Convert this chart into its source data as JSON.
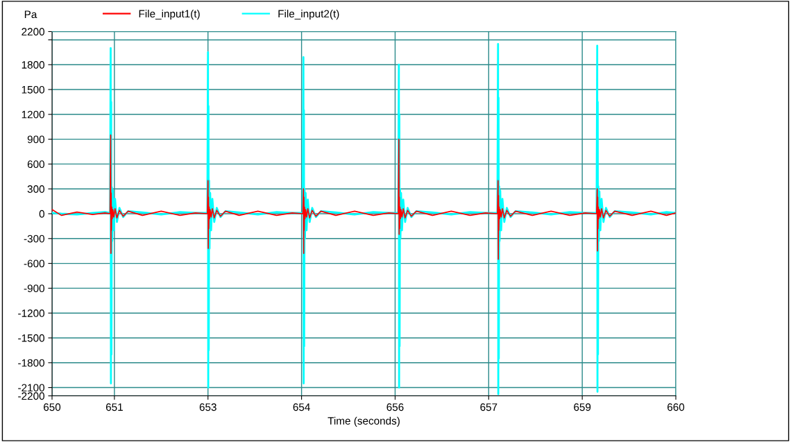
{
  "chart_data": {
    "type": "line",
    "ylabel": "Pa",
    "xlabel": "Time (seconds)",
    "legend": "top",
    "grid": true,
    "marker": "none",
    "line_style": "solid",
    "xlim": [
      650,
      660
    ],
    "xticks": [
      650,
      651,
      {
        "value": 652.5,
        "label": "653"
      },
      654,
      {
        "value": 655.5,
        "label": "656"
      },
      657,
      {
        "value": 658.5,
        "label": "659"
      },
      660
    ],
    "ylim": [
      -2200,
      2200
    ],
    "yticks": [
      -2200,
      -2100,
      -1800,
      -1500,
      -1200,
      -900,
      -600,
      -300,
      0,
      300,
      600,
      900,
      1200,
      1500,
      1800,
      {
        "value": 2100,
        "label": null
      },
      2200
    ],
    "x": [
      650.0,
      650.15,
      650.4,
      650.65,
      650.85,
      650.93,
      650.94,
      650.944,
      650.948,
      650.952,
      650.958,
      650.965,
      650.975,
      650.99,
      651.01,
      651.04,
      651.08,
      651.14,
      651.22,
      651.45,
      651.75,
      652.05,
      652.3,
      652.49,
      652.5,
      652.504,
      652.508,
      652.512,
      652.518,
      652.525,
      652.535,
      652.55,
      652.57,
      652.6,
      652.64,
      652.7,
      652.78,
      653.0,
      653.3,
      653.6,
      653.85,
      654.02,
      654.03,
      654.034,
      654.038,
      654.042,
      654.048,
      654.055,
      654.065,
      654.08,
      654.1,
      654.13,
      654.17,
      654.23,
      654.31,
      654.55,
      654.85,
      655.15,
      655.4,
      655.55,
      655.56,
      655.564,
      655.568,
      655.572,
      655.578,
      655.585,
      655.595,
      655.61,
      655.63,
      655.66,
      655.7,
      655.76,
      655.84,
      656.1,
      656.4,
      656.7,
      656.95,
      657.14,
      657.15,
      657.154,
      657.158,
      657.162,
      657.168,
      657.175,
      657.185,
      657.2,
      657.22,
      657.25,
      657.29,
      657.35,
      657.43,
      657.7,
      658.0,
      658.3,
      658.55,
      658.73,
      658.74,
      658.744,
      658.748,
      658.752,
      658.758,
      658.765,
      658.775,
      658.79,
      658.81,
      658.84,
      658.88,
      658.94,
      659.02,
      659.3,
      659.6,
      659.85,
      660.0
    ],
    "series": [
      {
        "name": "File_input1(t)",
        "color": "#ff0000",
        "values": [
          50,
          -20,
          20,
          -10,
          10,
          0,
          950,
          -480,
          250,
          -200,
          80,
          -60,
          50,
          -40,
          60,
          -50,
          40,
          -30,
          30,
          -20,
          30,
          -20,
          10,
          0,
          400,
          -420,
          200,
          -180,
          80,
          -60,
          50,
          -40,
          60,
          -50,
          40,
          -30,
          30,
          -20,
          30,
          -20,
          10,
          0,
          300,
          -480,
          200,
          -200,
          80,
          -60,
          50,
          -40,
          60,
          -50,
          40,
          -30,
          30,
          -20,
          30,
          -20,
          10,
          0,
          900,
          -250,
          200,
          -180,
          80,
          -60,
          50,
          -40,
          60,
          -50,
          40,
          -30,
          30,
          -20,
          30,
          -20,
          10,
          0,
          400,
          -550,
          220,
          -200,
          80,
          -60,
          50,
          -40,
          60,
          -50,
          40,
          -30,
          30,
          -20,
          30,
          -20,
          10,
          0,
          300,
          -450,
          200,
          -180,
          80,
          -60,
          50,
          -40,
          60,
          -50,
          40,
          -30,
          30,
          -20,
          30,
          -20,
          10
        ]
      },
      {
        "name": "File_input2(t)",
        "color": "#00ffff",
        "values": [
          10,
          0,
          -10,
          10,
          20,
          10,
          2000,
          -2050,
          1350,
          -1700,
          320,
          -330,
          280,
          -200,
          180,
          -100,
          70,
          -40,
          30,
          15,
          -10,
          20,
          10,
          10,
          1950,
          -2100,
          1300,
          -1650,
          400,
          -420,
          250,
          -200,
          180,
          -100,
          70,
          -40,
          30,
          15,
          -10,
          20,
          10,
          10,
          1890,
          -2050,
          1250,
          -1600,
          300,
          -300,
          250,
          -200,
          170,
          -100,
          70,
          -40,
          30,
          15,
          -10,
          20,
          10,
          10,
          1800,
          -2100,
          1200,
          -1600,
          300,
          -300,
          250,
          -200,
          170,
          -100,
          70,
          -40,
          30,
          15,
          -10,
          20,
          10,
          10,
          2050,
          -2180,
          1400,
          -1750,
          330,
          -330,
          280,
          -200,
          180,
          -100,
          70,
          -40,
          30,
          15,
          -10,
          20,
          10,
          10,
          2030,
          -2150,
          1350,
          -1700,
          330,
          -330,
          270,
          -200,
          180,
          -100,
          70,
          -40,
          30,
          15,
          -10,
          20,
          10
        ]
      }
    ]
  }
}
